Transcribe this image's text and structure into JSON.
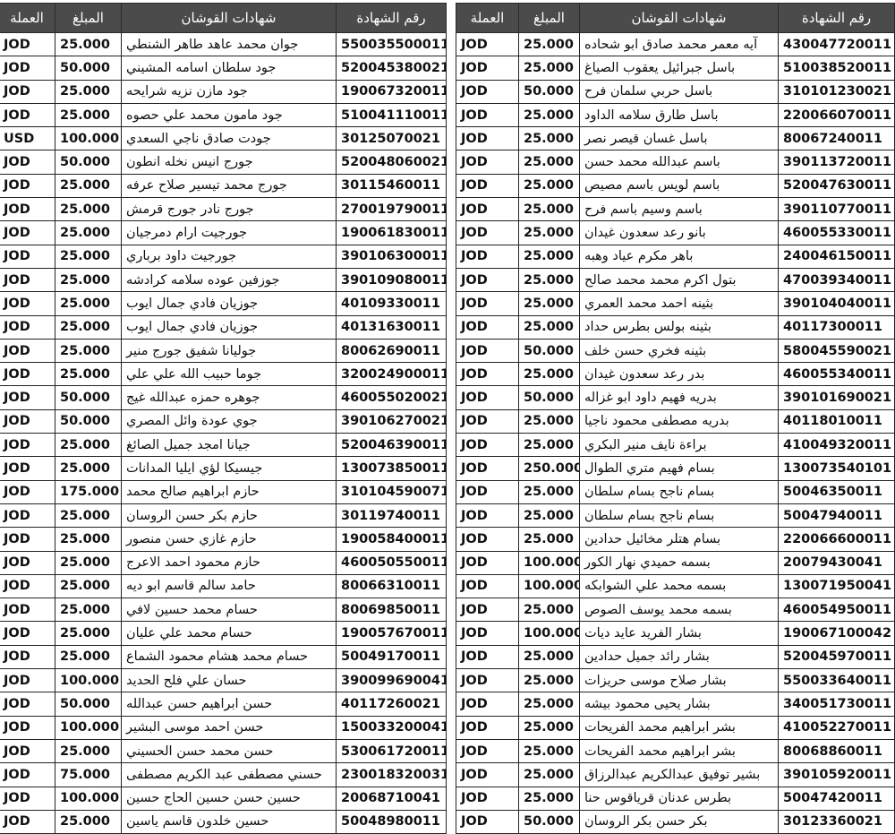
{
  "headers": [
    "رقم الشهادة",
    "شهادات القوشان",
    "المبلغ",
    "العملة"
  ],
  "tables": [
    {
      "rows": [
        [
          "430047720011",
          "آيه معمر محمد صادق ابو شحاده",
          "25.000",
          "JOD"
        ],
        [
          "510038520011",
          "باسل جبرائيل يعقوب الصياغ",
          "25.000",
          "JOD"
        ],
        [
          "310101230021",
          "باسل حربي سلمان فرح",
          "50.000",
          "JOD"
        ],
        [
          "220066070011",
          "باسل طارق سلامه الداود",
          "25.000",
          "JOD"
        ],
        [
          "80067240011",
          "باسل غسان قيصر نصر",
          "25.000",
          "JOD"
        ],
        [
          "390113720011",
          "باسم عبدالله محمد حسن",
          "25.000",
          "JOD"
        ],
        [
          "520047630011",
          "باسم لويس باسم مصيص",
          "25.000",
          "JOD"
        ],
        [
          "390110770011",
          "باسم وسيم باسم فرح",
          "25.000",
          "JOD"
        ],
        [
          "460055330011",
          "بانو رعد سعدون غيدان",
          "25.000",
          "JOD"
        ],
        [
          "240046150011",
          "باهر مكرم عياد وهبه",
          "25.000",
          "JOD"
        ],
        [
          "470039340011",
          "بتول اكرم محمد محمد صالح",
          "25.000",
          "JOD"
        ],
        [
          "390104040011",
          "بثينه احمد محمد العمري",
          "25.000",
          "JOD"
        ],
        [
          "40117300011",
          "بثينه بولس بطرس حداد",
          "25.000",
          "JOD"
        ],
        [
          "580045590021",
          "بثينه فخري حسن خلف",
          "50.000",
          "JOD"
        ],
        [
          "460055340011",
          "بدر رعد سعدون غيدان",
          "25.000",
          "JOD"
        ],
        [
          "390101690021",
          "بدريه فهيم داود ابو غزاله",
          "50.000",
          "JOD"
        ],
        [
          "40118010011",
          "بدريه مصطفى محمود ناجيا",
          "25.000",
          "JOD"
        ],
        [
          "410049320011",
          "براءة نايف منير البكري",
          "25.000",
          "JOD"
        ],
        [
          "130073540101",
          "بسام فهيم متري الطوال",
          "250.000",
          "JOD"
        ],
        [
          "50046350011",
          "بسام ناجح بسام سلطان",
          "25.000",
          "JOD"
        ],
        [
          "50047940011",
          "بسام ناجح بسام سلطان",
          "25.000",
          "JOD"
        ],
        [
          "220066600011",
          "بسام هتلر مخائيل حدادين",
          "25.000",
          "JOD"
        ],
        [
          "20079430041",
          "بسمه حميدي نهار الكور",
          "100.000",
          "JOD"
        ],
        [
          "130071950041",
          "بسمه محمد علي الشوابكه",
          "100.000",
          "JOD"
        ],
        [
          "460054950011",
          "بسمه محمد يوسف الصوص",
          "25.000",
          "JOD"
        ],
        [
          "190067100042",
          "بشار الفريد عايد ديات",
          "100.000",
          "JOD"
        ],
        [
          "520045970011",
          "بشار رائد جميل حدادين",
          "25.000",
          "JOD"
        ],
        [
          "550033640011",
          "بشار صلاح موسى حريزات",
          "25.000",
          "JOD"
        ],
        [
          "340051730011",
          "بشار يحيى محمود بيشه",
          "25.000",
          "JOD"
        ],
        [
          "410052270011",
          "بشر ابراهيم محمد الفريحات",
          "25.000",
          "JOD"
        ],
        [
          "80068860011",
          "بشر ابراهيم محمد الفريحات",
          "25.000",
          "JOD"
        ],
        [
          "390105920011",
          "بشير توفيق عبدالكريم عبدالرزاق",
          "25.000",
          "JOD"
        ],
        [
          "50047420011",
          "بطرس عدنان قرياقوس حنا",
          "25.000",
          "JOD"
        ],
        [
          "30123360021",
          "بكر حسن بكر الروسان",
          "50.000",
          "JOD"
        ]
      ]
    },
    {
      "rows": [
        [
          "550035500011",
          "جوان محمد عاهد طاهر الشنطي",
          "25.000",
          "JOD"
        ],
        [
          "520045380021",
          "جود سلطان اسامه المشيني",
          "50.000",
          "JOD"
        ],
        [
          "190067320011",
          "جود مازن نزيه شرايحه",
          "25.000",
          "JOD"
        ],
        [
          "510041110011",
          "جود مامون محمد علي حصوه",
          "25.000",
          "JOD"
        ],
        [
          "30125070021",
          "جودت صادق ناجي السعدي",
          "100.000",
          "USD"
        ],
        [
          "520048060021",
          "جورج انيس نخله انطون",
          "50.000",
          "JOD"
        ],
        [
          "30115460011",
          "جورج محمد تيسير صلاح عرفه",
          "25.000",
          "JOD"
        ],
        [
          "270019790011",
          "جورج نادر جورج قرمش",
          "25.000",
          "JOD"
        ],
        [
          "190061830011",
          "جورجيت ارام دمرجيان",
          "25.000",
          "JOD"
        ],
        [
          "390106300011",
          "جورجيت داود برباري",
          "25.000",
          "JOD"
        ],
        [
          "390109080011",
          "جوزفين عوده سلامه كرادشه",
          "25.000",
          "JOD"
        ],
        [
          "40109330011",
          "جوزيان فادي جمال ايوب",
          "25.000",
          "JOD"
        ],
        [
          "40131630011",
          "جوزيان فادي جمال ايوب",
          "25.000",
          "JOD"
        ],
        [
          "80062690011",
          "جوليانا شفيق جورج منير",
          "25.000",
          "JOD"
        ],
        [
          "320024900011",
          "جوما حبيب الله علي علي",
          "25.000",
          "JOD"
        ],
        [
          "460055020021",
          "جوهره حمزه عبدالله غيج",
          "50.000",
          "JOD"
        ],
        [
          "390106270021",
          "جوي عودة وائل المصري",
          "50.000",
          "JOD"
        ],
        [
          "520046390011",
          "جيانا امجد جميل الصائغ",
          "25.000",
          "JOD"
        ],
        [
          "130073850011",
          "جيسيكا لؤي ايليا المدانات",
          "25.000",
          "JOD"
        ],
        [
          "310104590071",
          "حازم ابراهيم صالح محمد",
          "175.000",
          "JOD"
        ],
        [
          "30119740011",
          "حازم بكر حسن الروسان",
          "25.000",
          "JOD"
        ],
        [
          "190058400011",
          "حازم غازي حسن منصور",
          "25.000",
          "JOD"
        ],
        [
          "460050550011",
          "حازم محمود احمد الاعرج",
          "25.000",
          "JOD"
        ],
        [
          "80066310011",
          "حامد سالم قاسم ابو ديه",
          "25.000",
          "JOD"
        ],
        [
          "80069850011",
          "حسام محمد حسين لافي",
          "25.000",
          "JOD"
        ],
        [
          "190057670011",
          "حسام محمد علي عليان",
          "25.000",
          "JOD"
        ],
        [
          "50049170011",
          "حسام محمد هشام محمود الشماع",
          "25.000",
          "JOD"
        ],
        [
          "390099690041",
          "حسان علي فلح الحديد",
          "100.000",
          "JOD"
        ],
        [
          "40117260021",
          "حسن ابراهيم حسن عبدالله",
          "50.000",
          "JOD"
        ],
        [
          "150033200041",
          "حسن احمد موسى البشير",
          "100.000",
          "JOD"
        ],
        [
          "530061720011",
          "حسن محمد حسن الحسيني",
          "25.000",
          "JOD"
        ],
        [
          "230018320031",
          "حسني مصطفى عبد الكريم مصطفى",
          "75.000",
          "JOD"
        ],
        [
          "20068710041",
          "حسين حسن حسين الحاج حسين",
          "100.000",
          "JOD"
        ],
        [
          "50048980011",
          "حسين خلدون قاسم ياسين",
          "25.000",
          "JOD"
        ]
      ]
    }
  ]
}
